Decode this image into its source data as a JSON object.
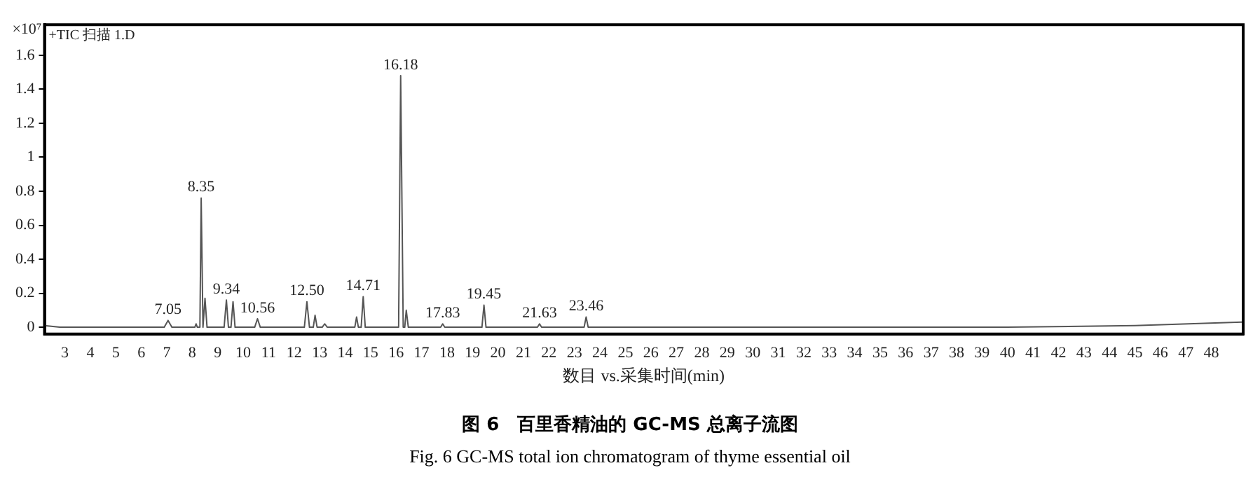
{
  "chart_data": {
    "type": "line",
    "title": "图 6　百里香精油的 GC-MS 总离子流图",
    "subtitle": "Fig. 6 GC-MS total ion chromatogram of thyme essential oil",
    "xlabel": "数目 vs.采集时间(min)",
    "ylabel": "×10⁷",
    "x": [
      2.2,
      2.8,
      3,
      5.8,
      6.9,
      7.05,
      7.2,
      8.1,
      8.15,
      8.2,
      8.3,
      8.35,
      8.42,
      8.5,
      8.58,
      9.25,
      9.34,
      9.42,
      9.52,
      9.6,
      9.68,
      10.45,
      10.56,
      10.67,
      12.4,
      12.5,
      12.6,
      12.75,
      12.82,
      12.9,
      13.1,
      13.2,
      13.3,
      14.38,
      14.45,
      14.52,
      14.63,
      14.71,
      14.79,
      16.1,
      16.18,
      16.28,
      16.34,
      16.4,
      16.48,
      17.75,
      17.83,
      17.91,
      19.37,
      19.45,
      19.53,
      21.55,
      21.63,
      21.71,
      23.38,
      23.46,
      23.54,
      30,
      40,
      45,
      49.2
    ],
    "series": [
      {
        "color": "#555555",
        "values": [
          0.01,
          0,
          0,
          0,
          0,
          0.04,
          0,
          0,
          0.02,
          0,
          0,
          0.76,
          0,
          0.17,
          0,
          0,
          0.16,
          0,
          0,
          0.15,
          0,
          0,
          0.05,
          0,
          0,
          0.15,
          0,
          0,
          0.07,
          0,
          0,
          0.02,
          0,
          0,
          0.06,
          0,
          0,
          0.18,
          0,
          0,
          1.48,
          0,
          0,
          0.1,
          0,
          0,
          0.02,
          0,
          0,
          0.13,
          0,
          0,
          0.02,
          0,
          0,
          0.06,
          0,
          0,
          0,
          0.01,
          0.03
        ]
      }
    ],
    "xlim": [
      2.2,
      49.25
    ],
    "xticks": [
      3,
      4,
      5,
      6,
      7,
      8,
      9,
      10,
      11,
      12,
      13,
      14,
      15,
      16,
      17,
      18,
      19,
      20,
      21,
      22,
      23,
      24,
      25,
      26,
      27,
      28,
      29,
      30,
      31,
      32,
      33,
      34,
      35,
      36,
      37,
      38,
      39,
      40,
      41,
      42,
      43,
      44,
      45,
      46,
      47,
      48
    ],
    "ylim": [
      -0.04,
      1.78
    ],
    "yticks": [
      0,
      0.2,
      0.4,
      0.6,
      0.8,
      1,
      1.2,
      1.4,
      1.6
    ],
    "grid": false,
    "legend": false,
    "marker": "none",
    "line_style": "solid",
    "annotations": [
      "+TIC 扫描 1.D",
      {
        "text": "7.05",
        "x": 7.05,
        "y": 0.04
      },
      {
        "text": "8.35",
        "x": 8.35,
        "y": 0.76
      },
      {
        "text": "9.34",
        "x": 9.34,
        "y": 0.16
      },
      {
        "text": "10.56",
        "x": 10.56,
        "y": 0.05
      },
      {
        "text": "12.50",
        "x": 12.5,
        "y": 0.15
      },
      {
        "text": "14.71",
        "x": 14.71,
        "y": 0.18
      },
      {
        "text": "16.18",
        "x": 16.18,
        "y": 1.48
      },
      {
        "text": "17.83",
        "x": 17.83,
        "y": 0.02
      },
      {
        "text": "19.45",
        "x": 19.45,
        "y": 0.13
      },
      {
        "text": "21.63",
        "x": 21.63,
        "y": 0.02
      },
      {
        "text": "23.46",
        "x": 23.46,
        "y": 0.06
      }
    ]
  }
}
